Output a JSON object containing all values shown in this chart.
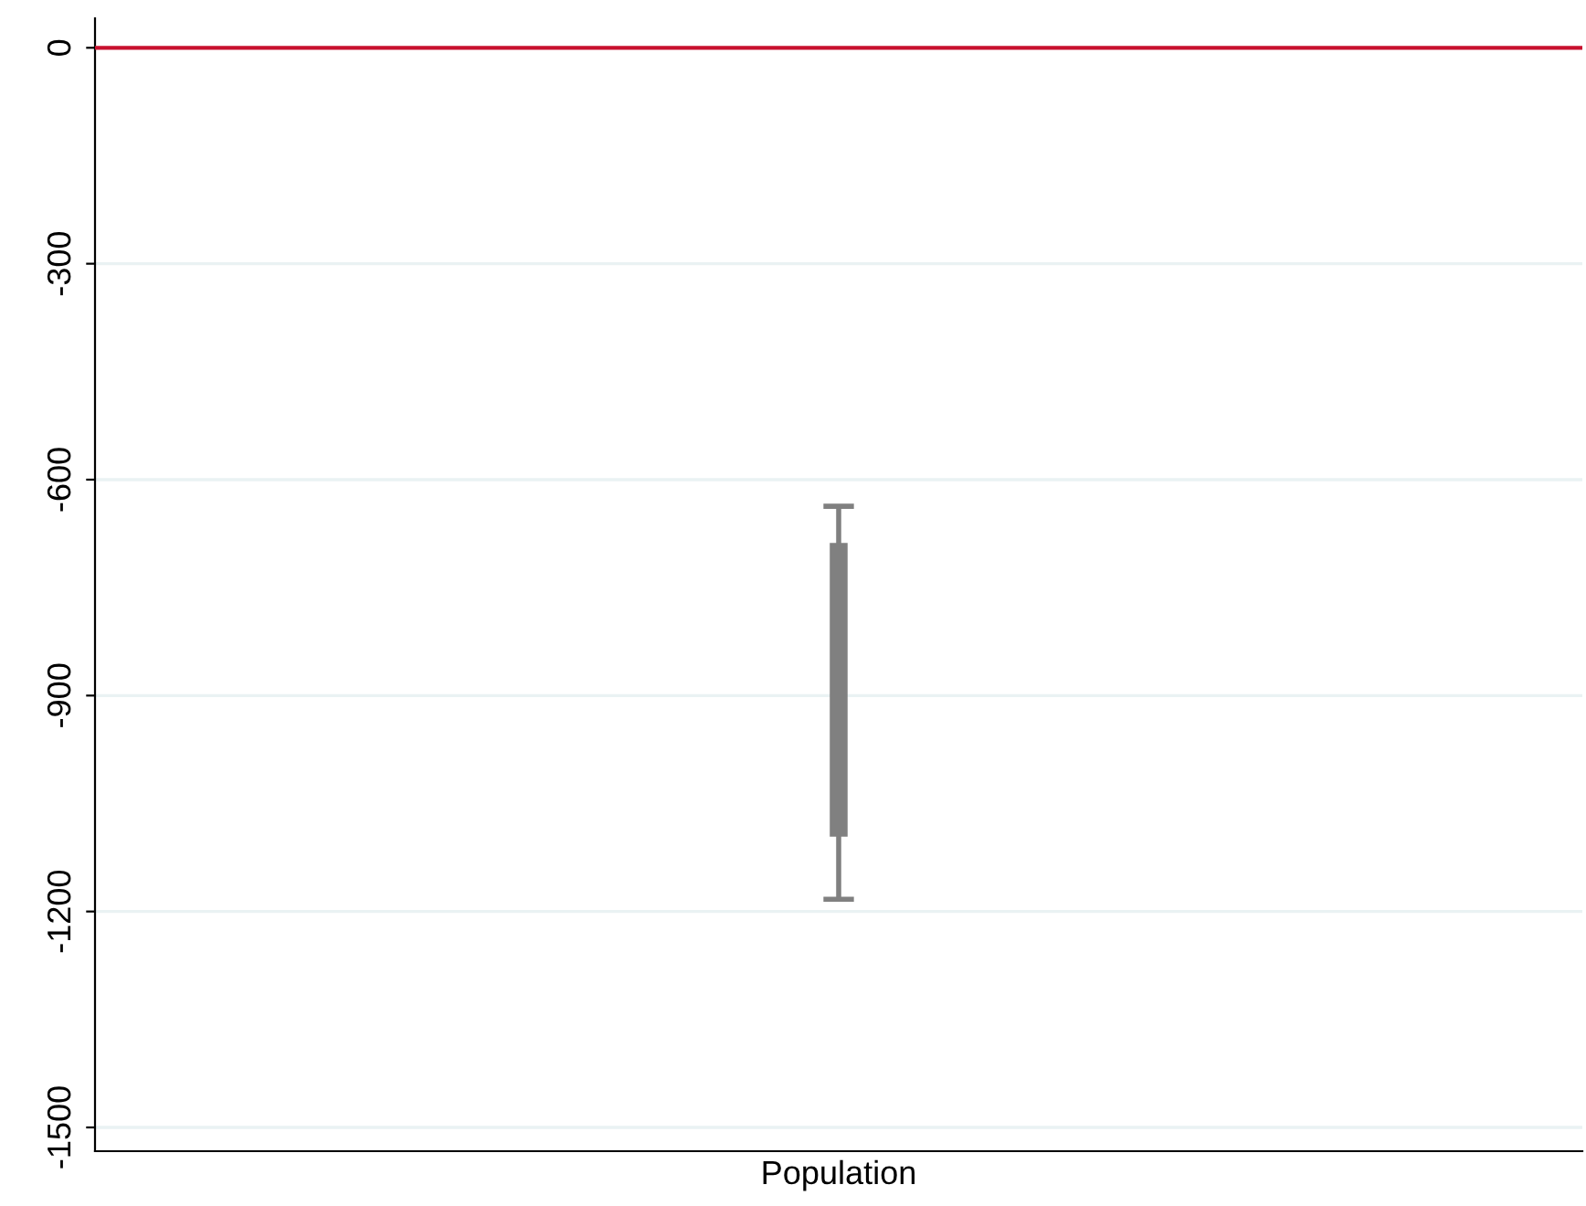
{
  "chart_data": {
    "type": "bar",
    "categories": [
      "Population"
    ],
    "series": [
      {
        "color": "#808080",
        "values": [
          408
        ],
        "base": [
          -1096
        ],
        "errors": [
          [
            -1183,
            -637
          ]
        ]
      }
    ],
    "ylim": [
      -1533,
      41
    ],
    "yticks": [
      {
        "value": 0,
        "label": "0"
      },
      {
        "value": -300,
        "label": "-300"
      },
      {
        "value": -600,
        "label": "-600"
      },
      {
        "value": -900,
        "label": "-900"
      },
      {
        "value": -1200,
        "label": "-1200"
      },
      {
        "value": -1500,
        "label": "-1500"
      }
    ],
    "grid": "y",
    "ref_lines": [
      {
        "axis": "y",
        "value": 0,
        "color": "#c8102e",
        "line_style": "solid"
      }
    ]
  }
}
